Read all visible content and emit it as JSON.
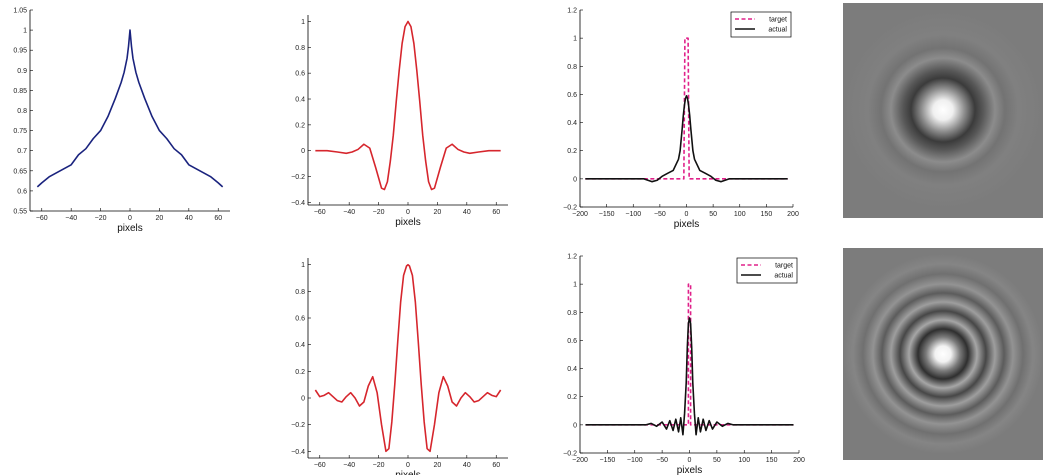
{
  "figure": {
    "background": "#ffffff"
  },
  "chart_data": [
    {
      "id": "a",
      "type": "line",
      "xlabel": "pixels",
      "ylabel": "",
      "xlim": [
        -68,
        68
      ],
      "ylim": [
        0.55,
        1.05
      ],
      "xticks": [
        -60,
        -40,
        -20,
        0,
        20,
        40,
        60
      ],
      "xtick_labels": [
        "−60",
        "−40",
        "−20",
        "0",
        "20",
        "40",
        "60"
      ],
      "yticks": [
        0.55,
        0.6,
        0.65,
        0.7,
        0.75,
        0.8,
        0.85,
        0.9,
        0.95,
        1,
        1.05
      ],
      "ytick_labels": [
        "0.55",
        "0.6",
        "0.65",
        "0.7",
        "0.75",
        "0.8",
        "0.85",
        "0.9",
        "0.95",
        "1",
        "1.05"
      ],
      "series": [
        {
          "color": "#1a237e",
          "dash": "solid",
          "x": [
            -63,
            -60,
            -55,
            -50,
            -45,
            -40,
            -35,
            -30,
            -25,
            -20,
            -15,
            -10,
            -6,
            -4,
            -2,
            -1,
            0,
            1,
            2,
            4,
            6,
            10,
            15,
            20,
            25,
            30,
            35,
            40,
            45,
            50,
            55,
            60,
            63
          ],
          "y": [
            0.61,
            0.62,
            0.635,
            0.645,
            0.655,
            0.665,
            0.69,
            0.705,
            0.73,
            0.75,
            0.785,
            0.83,
            0.87,
            0.895,
            0.93,
            0.96,
            1.0,
            0.96,
            0.93,
            0.895,
            0.87,
            0.83,
            0.785,
            0.75,
            0.73,
            0.705,
            0.69,
            0.665,
            0.655,
            0.645,
            0.635,
            0.62,
            0.61
          ]
        }
      ]
    },
    {
      "id": "b",
      "type": "line",
      "xlabel": "pixels",
      "ylabel": "",
      "xlim": [
        -68,
        68
      ],
      "ylim": [
        -0.42,
        1.05
      ],
      "xticks": [
        -60,
        -40,
        -20,
        0,
        20,
        40,
        60
      ],
      "xtick_labels": [
        "−60",
        "−40",
        "−20",
        "0",
        "20",
        "40",
        "60"
      ],
      "yticks": [
        -0.4,
        -0.2,
        0,
        0.2,
        0.4,
        0.6,
        0.8,
        1
      ],
      "ytick_labels": [
        "−0.4",
        "−0.2",
        "0",
        "0.2",
        "0.4",
        "0.6",
        "0.8",
        "1"
      ],
      "series": [
        {
          "color": "#d6262d",
          "dash": "solid",
          "x": [
            -63,
            -55,
            -48,
            -42,
            -38,
            -34,
            -30,
            -26,
            -22,
            -18,
            -16,
            -14,
            -12,
            -10,
            -8,
            -6,
            -4,
            -2,
            0,
            2,
            4,
            6,
            8,
            10,
            12,
            14,
            16,
            18,
            22,
            26,
            30,
            34,
            38,
            42,
            48,
            55,
            63
          ],
          "y": [
            0.0,
            0.0,
            -0.01,
            -0.02,
            -0.01,
            0.01,
            0.05,
            0.02,
            -0.13,
            -0.29,
            -0.3,
            -0.24,
            -0.08,
            0.12,
            0.38,
            0.62,
            0.83,
            0.96,
            1.0,
            0.96,
            0.83,
            0.62,
            0.38,
            0.12,
            -0.08,
            -0.24,
            -0.3,
            -0.29,
            -0.13,
            0.02,
            0.05,
            0.01,
            -0.01,
            -0.02,
            -0.01,
            0.0,
            0.0
          ]
        }
      ]
    },
    {
      "id": "c",
      "type": "line",
      "xlabel": "pixels",
      "ylabel": "",
      "xlim": [
        -200,
        200
      ],
      "ylim": [
        -0.2,
        1.2
      ],
      "xticks": [
        -200,
        -150,
        -100,
        -50,
        0,
        50,
        100,
        150,
        200
      ],
      "xtick_labels": [
        "−200",
        "−150",
        "−100",
        "−50",
        "0",
        "50",
        "100",
        "150",
        "200"
      ],
      "yticks": [
        -0.2,
        0,
        0.2,
        0.4,
        0.6,
        0.8,
        1,
        1.2
      ],
      "ytick_labels": [
        "−0.2",
        "0",
        "0.2",
        "0.4",
        "0.6",
        "0.8",
        "1",
        "1.2"
      ],
      "legend": {
        "position": "top-right",
        "entries": [
          "target",
          "actual"
        ]
      },
      "series": [
        {
          "name": "target",
          "color": "#e0218a",
          "dash": "dashed",
          "x": [
            -190,
            -9,
            -9,
            -5,
            -3,
            0,
            3,
            5,
            9,
            9,
            190
          ],
          "y": [
            0,
            0,
            0,
            0,
            1.0,
            1.0,
            1.0,
            0,
            0,
            0,
            0
          ]
        },
        {
          "name": "actual",
          "color": "#111111",
          "dash": "solid",
          "x": [
            -190,
            -100,
            -80,
            -65,
            -55,
            -45,
            -35,
            -25,
            -20,
            -15,
            -12,
            -10,
            -8,
            -6,
            -4,
            -2,
            0,
            2,
            4,
            6,
            8,
            10,
            12,
            15,
            20,
            25,
            35,
            45,
            55,
            65,
            80,
            100,
            190
          ],
          "y": [
            0,
            0,
            0.0,
            -0.02,
            -0.01,
            0.02,
            0.04,
            0.06,
            0.1,
            0.14,
            0.2,
            0.28,
            0.36,
            0.45,
            0.52,
            0.57,
            0.59,
            0.57,
            0.52,
            0.45,
            0.36,
            0.28,
            0.2,
            0.14,
            0.1,
            0.06,
            0.04,
            0.02,
            -0.01,
            -0.02,
            0.0,
            0,
            0
          ]
        }
      ]
    },
    {
      "id": "d",
      "type": "line",
      "xlabel": "pixels",
      "ylabel": "",
      "xlim": [
        -68,
        68
      ],
      "ylim": [
        -0.45,
        1.05
      ],
      "xticks": [
        -60,
        -40,
        -20,
        0,
        20,
        40,
        60
      ],
      "xtick_labels": [
        "−60",
        "−40",
        "−20",
        "0",
        "20",
        "40",
        "60"
      ],
      "yticks": [
        -0.4,
        -0.2,
        0,
        0.2,
        0.4,
        0.6,
        0.8,
        1
      ],
      "ytick_labels": [
        "−0.4",
        "−0.2",
        "0",
        "0.2",
        "0.4",
        "0.6",
        "0.8",
        "1"
      ],
      "series": [
        {
          "color": "#d6262d",
          "dash": "solid",
          "x": [
            -63,
            -60,
            -57,
            -54,
            -51,
            -48,
            -45,
            -42,
            -39,
            -36,
            -33,
            -30,
            -27,
            -24,
            -21,
            -18,
            -15,
            -13,
            -11,
            -9,
            -7,
            -5,
            -3,
            -1,
            0,
            1,
            3,
            5,
            7,
            9,
            11,
            13,
            15,
            18,
            21,
            24,
            27,
            30,
            33,
            36,
            39,
            42,
            45,
            48,
            51,
            54,
            57,
            60,
            63
          ],
          "y": [
            0.06,
            0.01,
            0.02,
            0.04,
            0.01,
            -0.02,
            -0.03,
            0.01,
            0.04,
            0.0,
            -0.06,
            -0.03,
            0.09,
            0.16,
            0.04,
            -0.2,
            -0.4,
            -0.38,
            -0.18,
            0.1,
            0.42,
            0.72,
            0.92,
            0.99,
            1.0,
            0.99,
            0.92,
            0.72,
            0.42,
            0.1,
            -0.18,
            -0.38,
            -0.4,
            -0.2,
            0.04,
            0.16,
            0.09,
            -0.03,
            -0.06,
            0.0,
            0.04,
            0.01,
            -0.03,
            -0.02,
            0.01,
            0.04,
            0.02,
            0.01,
            0.06
          ]
        }
      ]
    },
    {
      "id": "e",
      "type": "line",
      "xlabel": "pixels",
      "ylabel": "",
      "xlim": [
        -200,
        200
      ],
      "ylim": [
        -0.2,
        1.2
      ],
      "xticks": [
        -200,
        -150,
        -100,
        -50,
        0,
        50,
        100,
        150,
        200
      ],
      "xtick_labels": [
        "−200",
        "−150",
        "−100",
        "−50",
        "0",
        "50",
        "100",
        "150",
        "200"
      ],
      "yticks": [
        -0.2,
        0,
        0.2,
        0.4,
        0.6,
        0.8,
        1,
        1.2
      ],
      "ytick_labels": [
        "−0.2",
        "0",
        "0.2",
        "0.4",
        "0.6",
        "0.8",
        "1",
        "1.2"
      ],
      "legend": {
        "position": "top-right",
        "entries": [
          "target",
          "actual"
        ]
      },
      "series": [
        {
          "name": "target",
          "color": "#e0218a",
          "dash": "dashed",
          "x": [
            -190,
            -5,
            -5,
            -2,
            -2,
            2,
            2,
            5,
            5,
            190
          ],
          "y": [
            0,
            0,
            0,
            0,
            1.0,
            1.0,
            0,
            0,
            0,
            0
          ]
        },
        {
          "name": "actual",
          "color": "#111111",
          "dash": "solid",
          "x": [
            -190,
            -80,
            -70,
            -60,
            -50,
            -42,
            -36,
            -30,
            -25,
            -20,
            -16,
            -12,
            -9,
            -6,
            -4,
            -2,
            0,
            2,
            4,
            6,
            9,
            12,
            16,
            20,
            25,
            30,
            36,
            42,
            50,
            60,
            70,
            80,
            190
          ],
          "y": [
            0,
            0.0,
            0.01,
            -0.01,
            0.02,
            -0.03,
            0.03,
            -0.04,
            0.04,
            -0.05,
            0.05,
            -0.07,
            0.08,
            0.3,
            0.55,
            0.72,
            0.76,
            0.72,
            0.55,
            0.3,
            0.08,
            -0.07,
            0.05,
            -0.05,
            0.04,
            -0.04,
            0.03,
            -0.03,
            0.02,
            -0.01,
            0.01,
            0.0,
            0
          ]
        }
      ]
    }
  ],
  "images": [
    {
      "id": "top",
      "type": "radial-intensity",
      "background": "#7c7c7c",
      "profile": "center-bright with one faint dark ring"
    },
    {
      "id": "bottom",
      "type": "radial-intensity",
      "background": "#7c7c7c",
      "profile": "center-bright with multiple alternating rings"
    }
  ]
}
